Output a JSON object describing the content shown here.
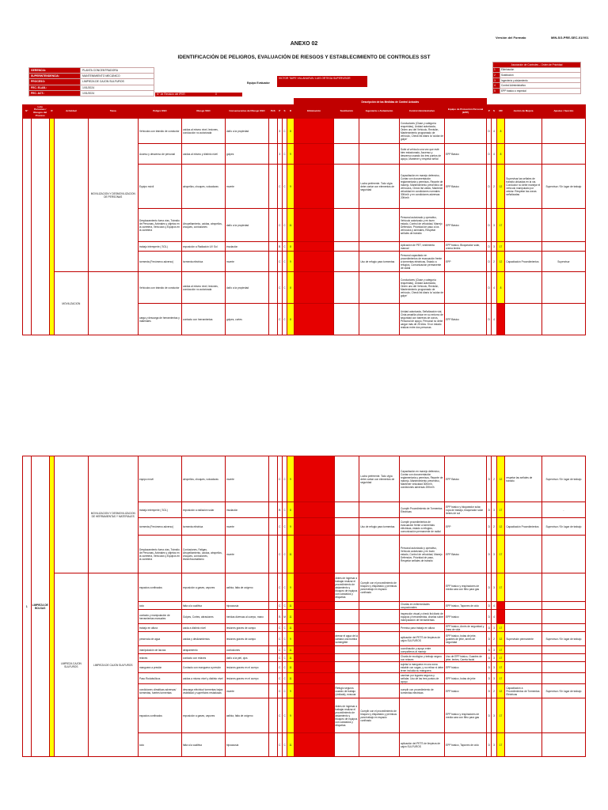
{
  "header": {
    "format_label": "Versión del Formato",
    "doc_code": "MIN-SG-PRE-SEC-01/V01",
    "anexo": "ANEXO 02",
    "title": "IDENTIFICACIÓN DE PELIGROS, EVALUACIÓN DE RIESGOS Y ESTABLECIMIENTO DE CONTROLES SST"
  },
  "info": [
    {
      "k": "GERENCIA:",
      "v": "PLANTA CONCENTRADORA"
    },
    {
      "k": "SUPERINTENDENCIA:",
      "v": "MANTENIMIENTO MECÁNICO"
    },
    {
      "k": "PROCESO:",
      "v": "LIMPIEZA DE CAJON SULFUROS"
    },
    {
      "k": "FEC. ELAB.:",
      "v": "1/01/2024"
    },
    {
      "k": "FEC. ACT.:",
      "v": "1/01/2024"
    }
  ],
  "equipo": {
    "label": "Equipo Evaluador",
    "value": "VICTOR TAIPE VILLANUEVA / LUIS ORTEGA SUPERVISOR"
  },
  "revision": {
    "label": "N° de Revisión del IPER",
    "value": "0"
  },
  "legend": {
    "title": "Asociación de Controles – Orden de Prioridad",
    "items": [
      {
        "n": "1",
        "t": "Eliminación",
        "color": "#c00000"
      },
      {
        "n": "2",
        "t": "Sustitución",
        "color": "#c00000"
      },
      {
        "n": "3",
        "t": "Ingeniería y aislamiento",
        "color": "#c00000"
      },
      {
        "n": "4",
        "t": "Control Administrativo",
        "color": "#c00000"
      },
      {
        "n": "5",
        "t": "EPP básico o especial",
        "color": "#c00000"
      }
    ]
  },
  "columns": [
    "N°",
    "Lote Personas / Riesgos del Proceso",
    "R",
    "Actividad",
    "Tarea",
    "Peligro SSO",
    "Riesgo SSO",
    "Consecuencias del Riesgo SSO",
    "PxS",
    "P",
    "S",
    "R",
    "Eliminación",
    "Sustitución",
    "Ingeniería o Aislamiento",
    "Control Administrativo",
    "Equipo de Protección Personal (EPP)",
    "P",
    "S",
    "RR",
    "Acción de Mejora",
    "Ajustes / Sección"
  ],
  "controls_header": "Descripción de las Medidas de Control Actuales",
  "page1": {
    "activity_a": "MOVILIZACION Y DESMOVILIZACION DE PERSONAS",
    "activity_b": "MOVILIZACION",
    "rows": [
      {
        "peligro": "Vehículos con tránsito de conductor",
        "riesgo": "caídas al mismo nivel, lesiones, conducción no autorizada",
        "cons": "daño a la propiedad",
        "p": "3",
        "s": "C",
        "r": "8",
        "ctrl": "Conductores (Clase y categoría requeridas), Unidad autorizada, Orden uno del Vehículo, Revisión, Mantenimiento programado de vehículo, Check list diario la 'cuidar de golpe'",
        "epp": "",
        "pp": "D",
        "ss": "4",
        "rr": "8",
        "mej": "",
        "aj": ""
      },
      {
        "peligro": "Acceso y descenso de personal",
        "riesgo": "caídas al mismo y distinto nivel",
        "cons": "golpes",
        "p": "3",
        "s": "C",
        "r": "9",
        "ctrl": "Subir al vehículo una vez que esté bien estacionado, Ascenso y descenso usando los tres puntos de apoyo, Mantener y respetar señal",
        "epp": "EPP Básico",
        "pp": "D",
        "ss": "4",
        "rr": "8",
        "mej": "",
        "aj": ""
      },
      {
        "peligro": "Equipo móvil",
        "riesgo": "atropellos, choques, volcaduras",
        "cons": "muerte",
        "p": "C",
        "s": "C",
        "r": "9",
        "elim": "",
        "ing": "Lucha preferente. Todo vigía debe contar con elementos de seguridad",
        "ctrl": "Capacitación en manejo defensivo, Contar con documentación reglamentaria y permisos, Reporte de manejo, Mantenimiento preventivo de vehículos, Check list valido, Mantener velocidad en condiciones normales 30Km/h y en condiciones adversas 20Km/h",
        "epp": "EPP Básico",
        "pp": "D",
        "ss": "2",
        "rr": "12",
        "mej": "Supervisar las señales de tránsito ubicadas en la vía. Conductor no debe manejar el vehículo manipulado por celular. Respetar las zonas señalizadas",
        "aj": "Supervisor / En lugar de trabajo"
      },
      {
        "peligro": "Desplazamiento fuera vías, Tránsito de Personas, Animales y objetos en la carretera, Vehículos y Equipos en la carretera",
        "riesgo": "Atropellamiento, caídas, atropellos, choques, contusiones",
        "cons": "daño a la propiedad",
        "p": "C",
        "s": "C",
        "r": "11",
        "ctrl": "Personal autorizado y operativo, Vehículo autorizado y en buen estado, Control de velocidad, Manejo Defensivo, Prioridad de paso a los vehículos y animales, Respetar señales de tránsito",
        "epp": "EPP Básico",
        "pp": "D",
        "ss": "3",
        "rr": "17",
        "mej": "",
        "aj": ""
      },
      {
        "peligro": "trabajo intemperie ( SOL)",
        "riesgo": "exposición a Radiación UV Sol",
        "cons": "insolación",
        "p": "B",
        "s": "C",
        "r": "8",
        "ctrl": "Aplicación de PET, vestimenta manual",
        "epp": "EPP básico, Bloqueador solar, crema lentes",
        "pp": "D",
        "ss": "3",
        "rr": "17",
        "mej": "",
        "aj": ""
      },
      {
        "peligro": "tormenta (Fenómeno adverso)",
        "riesgo": "tormenta eléctrica",
        "cons": "muerte",
        "p": "C",
        "s": "C",
        "r": "9",
        "ing": "Uso de refugio para tormentas",
        "ctrl": "Personal capacitado en procedimientos de evacuación frente a tormentas eléctricas, Estado a refugios, Comunicación permanente de radial",
        "epp": "EPP",
        "pp": "D",
        "ss": "2",
        "rr": "12",
        "mej": "Capacitación Procedimientos",
        "aj": "Supervisor"
      },
      {
        "peligro": "Vehículos con tránsito de conductor",
        "riesgo": "caídas al mismo nivel, lesiones, conducción no autorizada",
        "cons": "daño a la propiedad",
        "p": "C",
        "s": "C",
        "r": "8",
        "ctrl": "Conductores (Clase y categoría requeridas), Unidad autorizada, Orden uno del Vehículo, Revisión, Mantenimiento programado de vehículo, Check list diario la 'cuidar de golpe'",
        "epp": "",
        "pp": "D",
        "ss": "4",
        "rr": "8",
        "mej": "",
        "aj": ""
      },
      {
        "peligro": "carga y descarga de herramientas y materiales",
        "riesgo": "contacto con herramientas",
        "cons": "golpes, cortes",
        "p": "C",
        "s": "C",
        "r": "8",
        "ctrl": "Unidad autorizada, Señalización vial, Cinta amarilla ubicar en su entorno de seguridad con barreras de conos, Personal de apoyo, Personal no debe cargar más de 25 kilos. Si un estado realizar entre dos personas",
        "epp": "EPP Básico",
        "pp": "D",
        "ss": "4",
        "rr": "",
        "mej": "",
        "aj": ""
      }
    ]
  },
  "page2": {
    "activity_a": "MOVILIZACION Y DESMOVILIZACION DE HERRAMIENTAS Y MATERIALES",
    "proceso": "LIMPIEZA DE BOLSAS",
    "task_b": "LIMPIEZA CAJON SULFUROS",
    "task_b2": "LIMPIEZA DE CAJON SULFUROS",
    "rows": [
      {
        "peligro": "equipo móvil",
        "riesgo": "atropellos, choques, volcaduras",
        "cons": "muerte",
        "p": "C",
        "s": "C",
        "r": "9",
        "ing": "Lucha preferente. Todo vigía debe contar con elementos de seguridad",
        "ctrl": "Capacitación en manejo defensivo, Contar con documentación reglamentaria y permisos, Reporte de manejo, Mantenimiento preventivo, Mantener velocidad 30Km/h, condiciones adversas 20Km/h",
        "epp": "EPP Básico",
        "pp": "D",
        "ss": "2",
        "rr": "12",
        "mej": "respetar las señales de tránsito",
        "aj": "Supervisor / En lugar de trabajo"
      },
      {
        "peligro": "trabajo intemperie ( SOL)",
        "riesgo": "exposición a radiación solar",
        "cons": "insolación",
        "p": "B",
        "s": "C",
        "r": "8",
        "ctrl": "Cumplir Procedimiento de Tormentas Eléctricas",
        "epp": "EPP básico y bloqueador solar, ropa de trabajo, bloqueador solar lentes de sol",
        "pp": "D",
        "ss": "3",
        "rr": "17",
        "mej": "",
        "aj": "-"
      },
      {
        "peligro": "tormenta (Fenómeno adverso)",
        "riesgo": "tormenta eléctrica",
        "cons": "muerte",
        "p": "C",
        "s": "C",
        "r": "9",
        "ing": "Uso de refugio para tormentas",
        "ctrl": "Cumplir procedimientos de evacuación frente a tormentas eléctricas, estado a refugios, comunicación permanente de radial",
        "epp": "EPP",
        "pp": "D",
        "ss": "2",
        "rr": "12",
        "mej": "Capacitación Procedimientos",
        "aj": "Supervisor / En lugar de trabajo"
      },
      {
        "peligro": "Desplazamiento fuera vías, Tránsito de Personas, Animales y objetos en la carretera, Vehículos y Equipos en la carretera",
        "riesgo": "Contusiones, Fatigas, Atropellamiento, caídas, atropellos, choques, contusiones, lesión/traumatismo",
        "cons": "muerte",
        "p": "C",
        "s": "C",
        "r": "11",
        "ctrl": "Personal autorizado y operativo, Vehículo autorizado y en buen estado, Control de velocidad, Manejo Defensivo, Prioridad de paso, Respetar señales de tránsito",
        "epp": "EPP Básico",
        "pp": "D",
        "ss": "3",
        "rr": "17",
        "mej": "",
        "aj": ""
      },
      {
        "peligro": "espacios confinados",
        "riesgo": "exposición a gases, vapores",
        "cons": "asfixia, falta de oxígeno",
        "p": "C",
        "s": "C",
        "r": "9",
        "elim": "Antes de ingresar a trabajar realizar el procedimiento de aislamiento y bloqueo de equipos con candados y etiquetas",
        "ing": "Cumplir con el procedimiento de bloqueo y etiquetado y permisos para trabajo en espacio confinado",
        "ctrl": "",
        "epp": "EPP básico y respiradores de media cara con filtro para gas",
        "pp": "D",
        "ss": "3",
        "rr": "17",
        "mej": "",
        "aj": ""
      },
      {
        "peligro": "lodo",
        "riesgo": "falta a la auditiva",
        "cons": "hipoacusia",
        "p": "C",
        "s": "C",
        "r": "11",
        "ctrl": "Charlas en enfermedades ocupacionales",
        "epp": "EPP básico, Tapones de oído",
        "pp": "D",
        "ss": "4",
        "rr": "",
        "mej": "",
        "aj": ""
      },
      {
        "peligro": "contacto y manipulación de herramientas manuales",
        "riesgo": "Golpes, Cortes, abrasiones",
        "cons": "heridas diversas al cuerpo, mano",
        "p": "B",
        "s": "M",
        "r": "11",
        "ctrl": "inspección visual y check list diario de equipos y herramientas, charlas sobre manipulación de herramientas",
        "epp": "EPP básico",
        "pp": "D",
        "ss": "4",
        "rr": "",
        "mej": "",
        "aj": ""
      },
      {
        "peligro": "trabajo en altura",
        "riesgo": "caída a distinto nivel",
        "cons": "lesiones graves de campo",
        "p": "C",
        "s": "C",
        "r": "11",
        "ctrl": "Permiso para trabajo en altura",
        "epp": "EPP básico, Arnés de seguridad y línea de vida",
        "pp": "D",
        "ss": "3",
        "rr": "17",
        "mej": "",
        "aj": ""
      },
      {
        "peligro": "presencia de agua",
        "riesgo": "caídas y deslizamientos",
        "cons": "lesiones graves de campo",
        "p": "C",
        "s": "C",
        "r": "9",
        "elim": "drenar el agua de la cámara una bomba sumergible",
        "ctrl": "aplicación del PETS de limpieza de cajón SULFUROS",
        "epp": "EPP básico, botas de jebe, guantes de jebe, arnés de seguridad",
        "pp": "D",
        "ss": "2",
        "rr": "12",
        "mej": "Supervisión permanente",
        "aj": "Supervisor / En lugar de trabajo"
      },
      {
        "peligro": "manipulación de lanzas",
        "riesgo": "atrapamiento",
        "cons": "contusiones",
        "p": "C",
        "s": "C",
        "r": "11",
        "ctrl": "coordinación y apoyo entre compañeros al manejo",
        "epp": "",
        "pp": "D",
        "ss": "3",
        "rr": "17",
        "mej": "",
        "aj": ""
      },
      {
        "peligro": "relaves",
        "riesgo": "contacto con relaves",
        "cons": "daño a la piel, ojos",
        "p": "C",
        "s": "C",
        "r": "11",
        "ctrl": "Charla de ecológico y trabajo seguro con relaves",
        "epp": "Uso de EPP básico, Guantes de jebe, lentes, Careta facial",
        "pp": "D",
        "ss": "3",
        "rr": "17",
        "mej": "",
        "aj": ""
      },
      {
        "peligro": "manguera a presión",
        "riesgo": "Contacto con manguera a presión",
        "cons": "lesiones graves en el cuerpo",
        "p": "C",
        "s": "C",
        "r": "11",
        "ctrl": "sujetar la manguera en una zona estable con sogas, y no retirar ni debe tener incluida su manguera",
        "epp": "EPP básico",
        "pp": "D",
        "ss": "3",
        "rr": "17",
        "mej": "",
        "aj": ""
      },
      {
        "peligro": "Paso Rodabullicos",
        "riesgo": "caídas a mismo nivel y distinto nivel",
        "cons": "lesiones graves en el cuerpo",
        "p": "C",
        "s": "C",
        "r": "11",
        "ctrl": "caminar por lugares seguros y señalar. Uso de las tres puntos de apoyo",
        "epp": "EPP básico, botas de jebe",
        "pp": "D",
        "ss": "3",
        "rr": "17",
        "mej": "",
        "aj": ""
      },
      {
        "peligro": "condiciones climáticas adversas/ tormentas, fuertes tormentas",
        "riesgo": "descarga eléctrica/ tormentas bajas visibilidad y superficies resbalosas",
        "cons": "muerte",
        "p": "C",
        "s": "C",
        "r": "9",
        "elim": "Refugio seguros cuando de trabajo (vinilada), evacuar",
        "ctrl": "cumplir con procedimiento de tormentas eléctricas",
        "epp": "EPP básico",
        "pp": "D",
        "ss": "2",
        "rr": "12",
        "mej": "Capacitación a Procedimientos de Tormentas Eléctricas",
        "aj": "Supervisor / En lugar de trabajo"
      },
      {
        "peligro": "espacios confinados",
        "riesgo": "exposición a gases, vapores",
        "cons": "asfixia, falta de oxígeno",
        "p": "C",
        "s": "C",
        "r": "9",
        "elim": "Antes de ingresar a trabajar realizar el procedimiento de aislamiento y bloqueo de equipos con candados y etiquetas",
        "ing": "Cumplir con el procedimiento de bloqueo y etiquetado y permisos para trabajo en espacio confinado",
        "ctrl": "",
        "epp": "EPP básico y respiradores de media cara con filtro para gas",
        "pp": "D",
        "ss": "3",
        "rr": "17",
        "mej": "",
        "aj": ""
      },
      {
        "peligro": "lodo",
        "riesgo": "falta a la auditiva",
        "cons": "hipoacusia",
        "p": "C",
        "s": "C",
        "r": "11",
        "ctrl": "aplicación del PETS de limpieza de cajón SULFUROS",
        "epp": "EPP básico, Tapones de oído",
        "pp": "D",
        "ss": "3",
        "rr": "17",
        "mej": "",
        "aj": ""
      }
    ]
  }
}
